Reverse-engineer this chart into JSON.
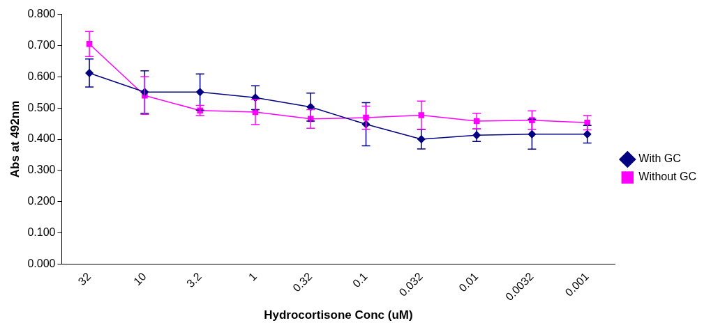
{
  "chart_data": {
    "type": "line",
    "xlabel": "Hydrocortisone Conc (uM)",
    "ylabel": "Abs at 492nm",
    "categories": [
      "32",
      "10",
      "3.2",
      "1",
      "0.32",
      "0.1",
      "0.032",
      "0.01",
      "0.0032",
      "0.001"
    ],
    "series": [
      {
        "name": "With GC",
        "color": "#000080",
        "marker": "diamond",
        "values": [
          0.612,
          0.551,
          0.551,
          0.533,
          0.503,
          0.448,
          0.4,
          0.413,
          0.416,
          0.416
        ],
        "errors": [
          0.045,
          0.068,
          0.058,
          0.038,
          0.045,
          0.069,
          0.031,
          0.02,
          0.048,
          0.028
        ]
      },
      {
        "name": "Without GC",
        "color": "#ff00ff",
        "marker": "square",
        "values": [
          0.705,
          0.54,
          0.492,
          0.487,
          0.465,
          0.469,
          0.477,
          0.458,
          0.461,
          0.453
        ],
        "errors": [
          0.04,
          0.06,
          0.016,
          0.04,
          0.03,
          0.037,
          0.045,
          0.025,
          0.03,
          0.023
        ]
      }
    ],
    "ylim": [
      0,
      0.8
    ],
    "yticks": [
      {
        "value": 0,
        "label": "0.000"
      },
      {
        "value": 0.1,
        "label": "0.100"
      },
      {
        "value": 0.2,
        "label": "0.200"
      },
      {
        "value": 0.3,
        "label": "0.300"
      },
      {
        "value": 0.4,
        "label": "0.400"
      },
      {
        "value": 0.5,
        "label": "0.500"
      },
      {
        "value": 0.6,
        "label": "0.600"
      },
      {
        "value": 0.7,
        "label": "0.700"
      },
      {
        "value": 0.8,
        "label": "0.800"
      }
    ],
    "grid": false,
    "legend": "right",
    "line_style": "solid"
  }
}
